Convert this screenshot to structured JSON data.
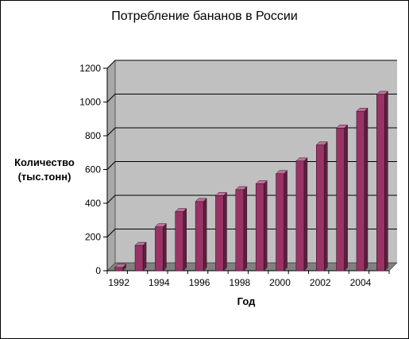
{
  "chart_data": {
    "type": "bar",
    "title": "Потребление бананов в России",
    "xlabel": "Год",
    "ylabel_lines": [
      "Количество",
      "(тыс.тонн)"
    ],
    "categories": [
      "1992",
      "1993",
      "1994",
      "1995",
      "1996",
      "1997",
      "1998",
      "1999",
      "2000",
      "2001",
      "2002",
      "2003",
      "2004",
      "2005"
    ],
    "x_tick_labels": [
      "1992",
      "1994",
      "1996",
      "1998",
      "2000",
      "2002",
      "2004"
    ],
    "values": [
      20,
      150,
      260,
      350,
      410,
      445,
      480,
      515,
      575,
      650,
      745,
      845,
      945,
      1045
    ],
    "ylim": [
      0,
      1200
    ],
    "y_ticks": [
      0,
      200,
      400,
      600,
      800,
      1000,
      1200
    ],
    "grid": true,
    "legend": false,
    "colors": {
      "bar_front": "#993366",
      "bar_side": "#5c1f3d",
      "bar_top": "#c0709a",
      "plot_bg": "#c0c0c0",
      "plot_side": "#a8a8a8",
      "floor": "#808080"
    }
  }
}
